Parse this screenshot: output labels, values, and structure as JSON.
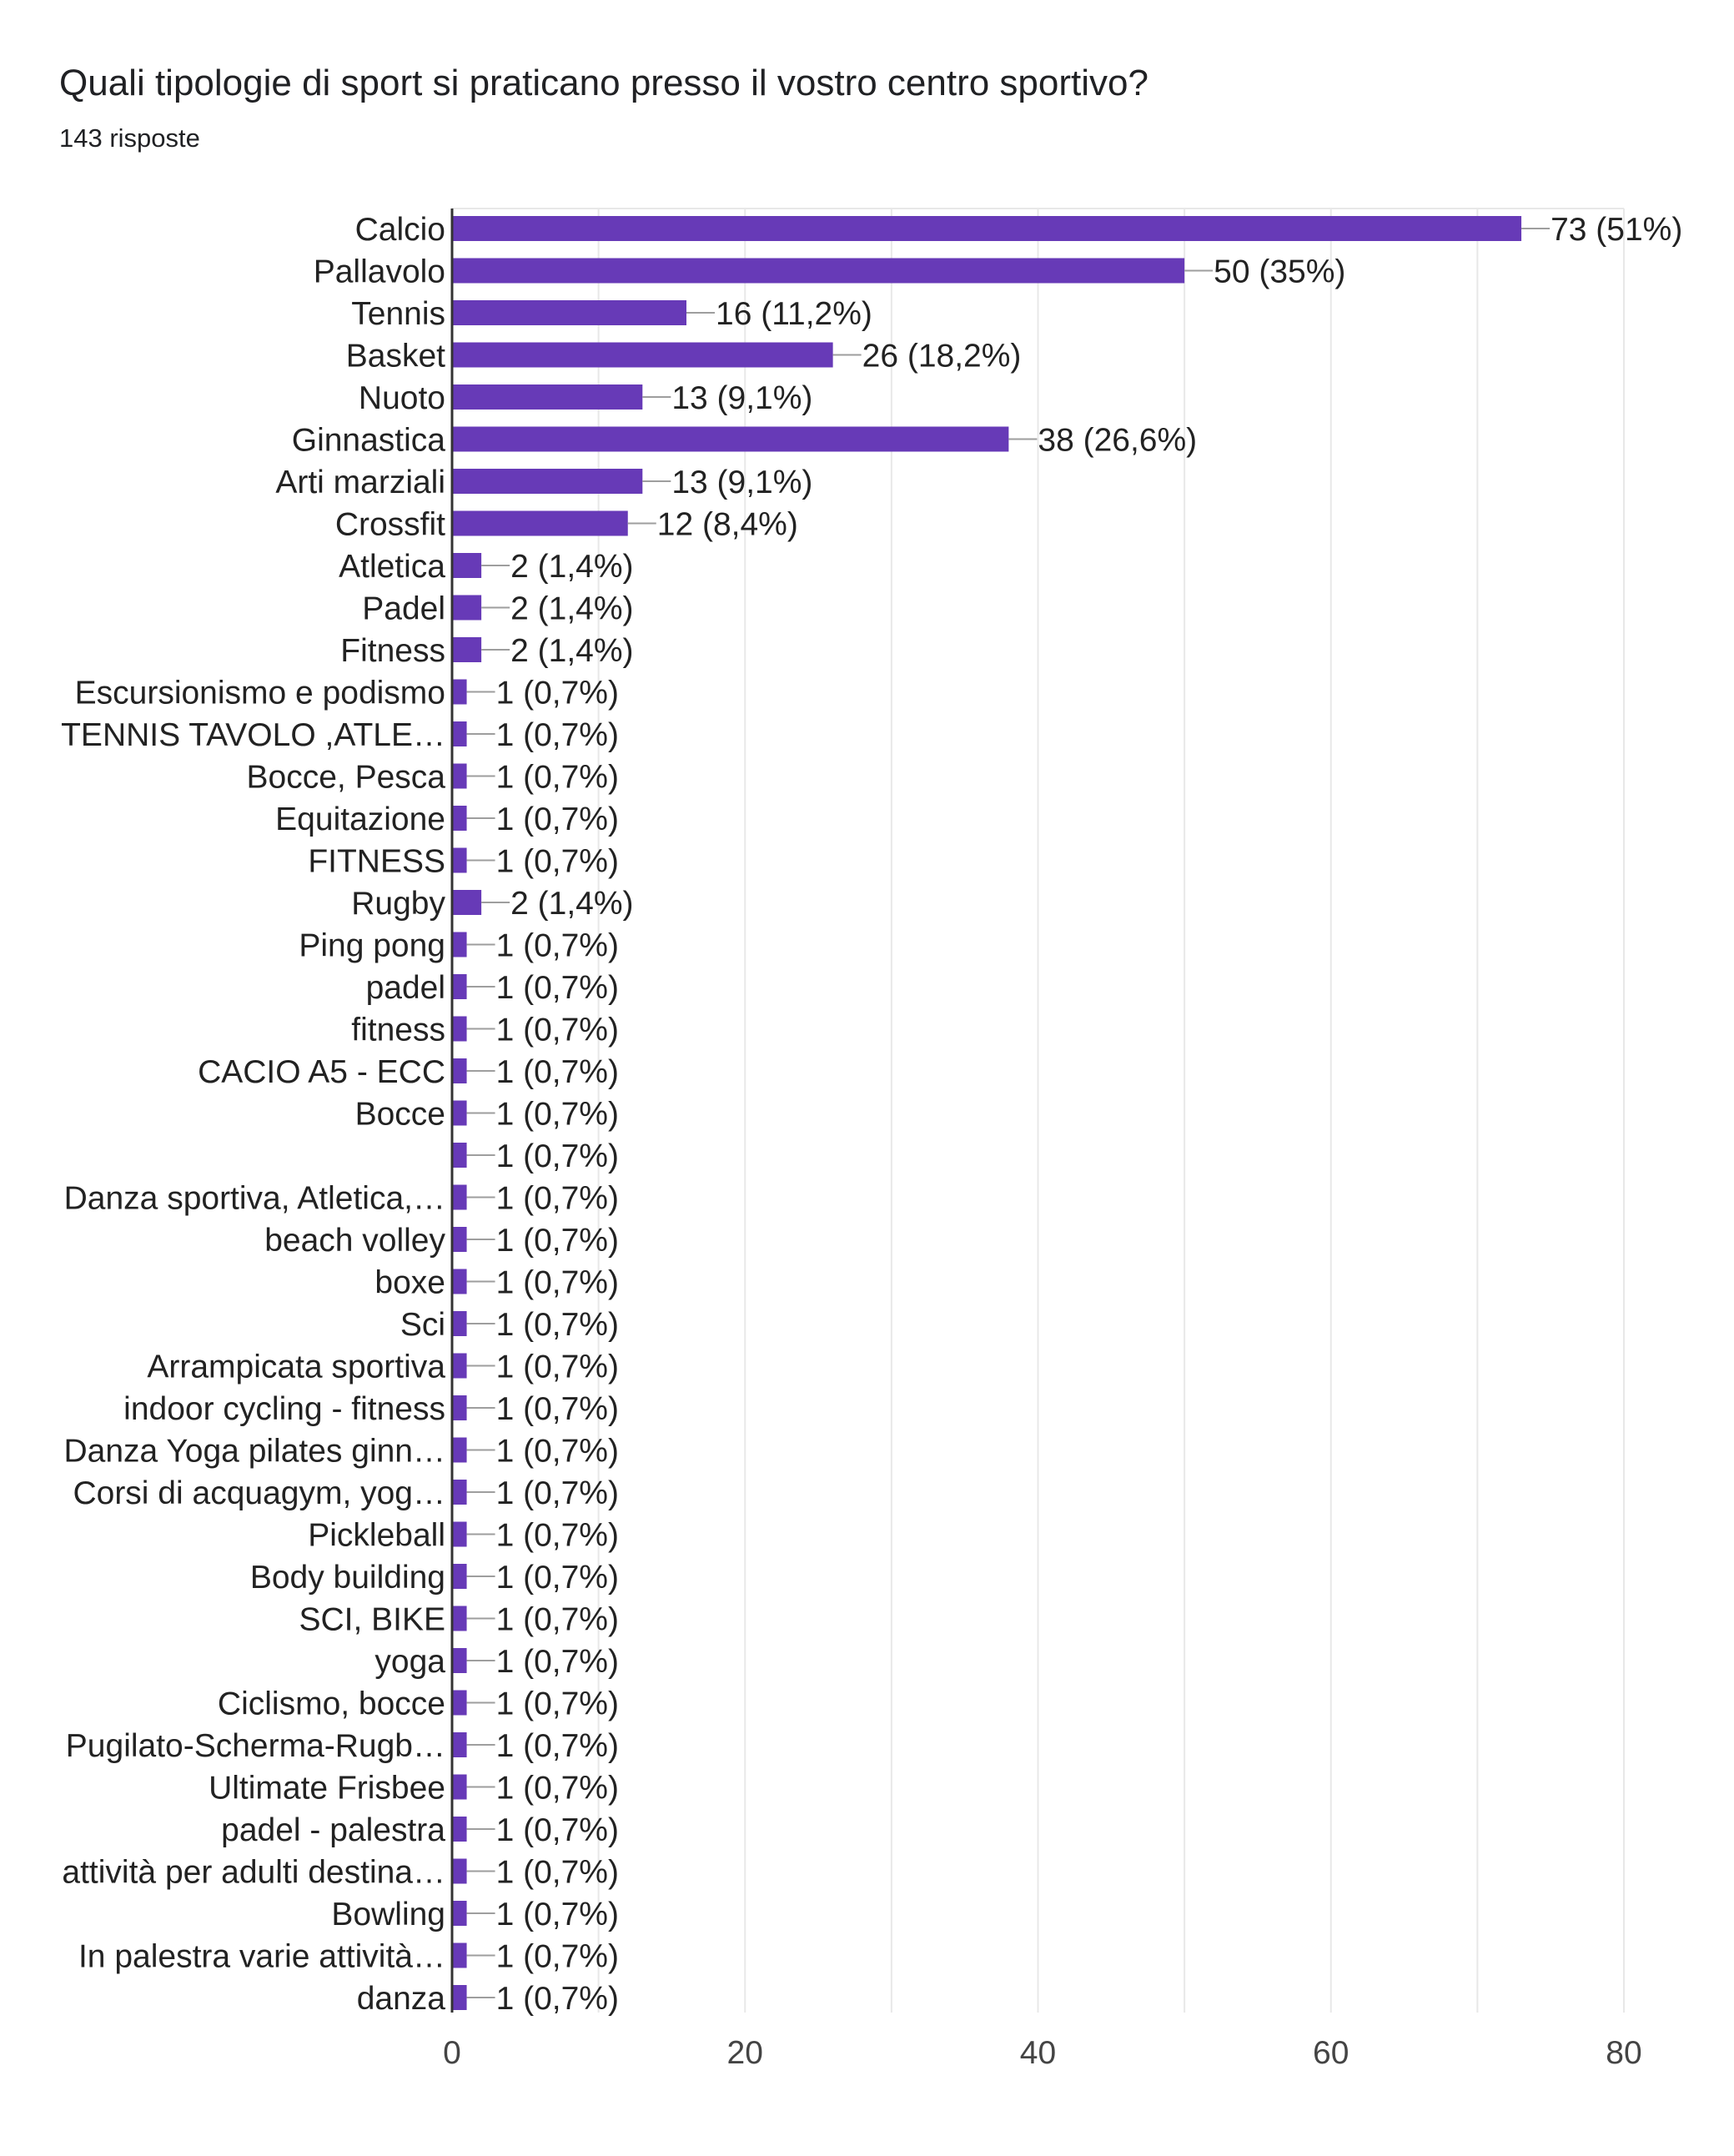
{
  "title": "Quali tipologie di sport si praticano presso il vostro centro sportivo?",
  "subtitle": "143 risposte",
  "colors": {
    "bar": "#673ab7",
    "grid": "#e8e8e8",
    "axis": "#333333",
    "leader": "#9e9e9e"
  },
  "chart_data": {
    "type": "bar",
    "orientation": "horizontal",
    "title": "Quali tipologie di sport si praticano presso il vostro centro sportivo?",
    "subtitle": "143 risposte",
    "xlim": [
      0,
      80
    ],
    "x_ticks": [
      "0",
      "20",
      "40",
      "60",
      "80"
    ],
    "grid": true,
    "categories": [
      "Calcio",
      "Pallavolo",
      "Tennis",
      "Basket",
      "Nuoto",
      "Ginnastica",
      "Arti marziali",
      "Crossfit",
      "Atletica",
      "Padel",
      "Fitness",
      "Escursionismo e podismo",
      "TENNIS TAVOLO ,ATLE…",
      "Bocce, Pesca",
      "Equitazione",
      "FITNESS",
      "Rugby",
      "Ping pong",
      "padel",
      "fitness",
      "CACIO A5 - ECC",
      "Bocce",
      "",
      "Danza sportiva, Atletica,…",
      "beach volley",
      "boxe",
      "Sci",
      "Arrampicata sportiva",
      "indoor cycling - fitness",
      "Danza Yoga pilates ginn…",
      "Corsi di acquagym, yog…",
      "Pickleball",
      "Body building",
      "SCI, BIKE",
      "yoga",
      "Ciclismo, bocce",
      "Pugilato-Scherma-Rugb…",
      "Ultimate Frisbee",
      "padel - palestra",
      "attività per adulti destina…",
      "Bowling",
      "In palestra varie attività…",
      "danza"
    ],
    "values": [
      73,
      50,
      16,
      26,
      13,
      38,
      13,
      12,
      2,
      2,
      2,
      1,
      1,
      1,
      1,
      1,
      2,
      1,
      1,
      1,
      1,
      1,
      1,
      1,
      1,
      1,
      1,
      1,
      1,
      1,
      1,
      1,
      1,
      1,
      1,
      1,
      1,
      1,
      1,
      1,
      1,
      1,
      1
    ],
    "labels": [
      "73 (51%)",
      "50 (35%)",
      "16 (11,2%)",
      "26 (18,2%)",
      "13 (9,1%)",
      "38 (26,6%)",
      "13 (9,1%)",
      "12 (8,4%)",
      "2 (1,4%)",
      "2 (1,4%)",
      "2 (1,4%)",
      "1 (0,7%)",
      "1 (0,7%)",
      "1 (0,7%)",
      "1 (0,7%)",
      "1 (0,7%)",
      "2 (1,4%)",
      "1 (0,7%)",
      "1 (0,7%)",
      "1 (0,7%)",
      "1 (0,7%)",
      "1 (0,7%)",
      "1 (0,7%)",
      "1 (0,7%)",
      "1 (0,7%)",
      "1 (0,7%)",
      "1 (0,7%)",
      "1 (0,7%)",
      "1 (0,7%)",
      "1 (0,7%)",
      "1 (0,7%)",
      "1 (0,7%)",
      "1 (0,7%)",
      "1 (0,7%)",
      "1 (0,7%)",
      "1 (0,7%)",
      "1 (0,7%)",
      "1 (0,7%)",
      "1 (0,7%)",
      "1 (0,7%)",
      "1 (0,7%)",
      "1 (0,7%)",
      "1 (0,7%)"
    ]
  }
}
